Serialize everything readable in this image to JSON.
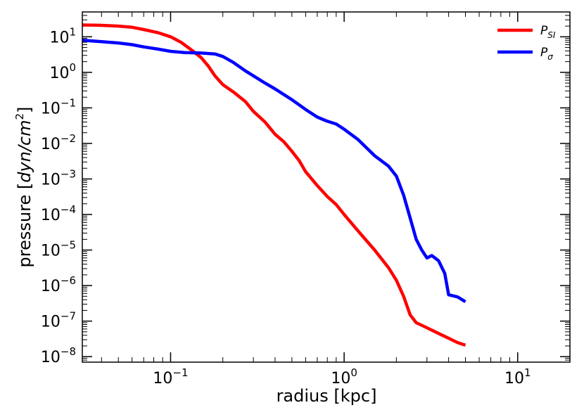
{
  "chart_data": {
    "type": "line",
    "xlabel": "radius [kpc]",
    "ylabel": {
      "prefix": "pressure [",
      "italic": "dyn/cm",
      "sup": "2",
      "suffix": "]"
    },
    "xscale": "log",
    "yscale": "log",
    "xlim": [
      0.031,
      20
    ],
    "ylim": [
      7e-09,
      50
    ],
    "x_ticks": [
      {
        "base": "10",
        "exp": "−1",
        "value": 0.1
      },
      {
        "base": "10",
        "exp": "0",
        "value": 1
      },
      {
        "base": "10",
        "exp": "1",
        "value": 10
      }
    ],
    "y_ticks": [
      {
        "base": "10",
        "exp": "1",
        "value": 10
      },
      {
        "base": "10",
        "exp": "0",
        "value": 1
      },
      {
        "base": "10",
        "exp": "−1",
        "value": 0.1
      },
      {
        "base": "10",
        "exp": "−2",
        "value": 0.01
      },
      {
        "base": "10",
        "exp": "−3",
        "value": 0.001
      },
      {
        "base": "10",
        "exp": "−4",
        "value": 0.0001
      },
      {
        "base": "10",
        "exp": "−5",
        "value": 1e-05
      },
      {
        "base": "10",
        "exp": "−6",
        "value": 1e-06
      },
      {
        "base": "10",
        "exp": "−7",
        "value": 1e-07
      },
      {
        "base": "10",
        "exp": "−8",
        "value": 1e-08
      }
    ],
    "grid": false,
    "legend_position": "top-right",
    "series": [
      {
        "name": "P_SI",
        "label_main": "P",
        "label_sub": "SI",
        "color": "#ff0000",
        "points": [
          [
            0.031,
            21.5
          ],
          [
            0.04,
            21.0
          ],
          [
            0.05,
            20.0
          ],
          [
            0.06,
            18.5
          ],
          [
            0.07,
            16.0
          ],
          [
            0.085,
            13.0
          ],
          [
            0.1,
            10.0
          ],
          [
            0.115,
            7.0
          ],
          [
            0.13,
            4.5
          ],
          [
            0.15,
            2.6
          ],
          [
            0.165,
            1.5
          ],
          [
            0.18,
            0.8
          ],
          [
            0.2,
            0.45
          ],
          [
            0.23,
            0.28
          ],
          [
            0.27,
            0.15
          ],
          [
            0.3,
            0.08
          ],
          [
            0.35,
            0.04
          ],
          [
            0.4,
            0.018
          ],
          [
            0.45,
            0.011
          ],
          [
            0.5,
            0.006
          ],
          [
            0.55,
            0.0033
          ],
          [
            0.6,
            0.0016
          ],
          [
            0.7,
            0.00065
          ],
          [
            0.8,
            0.00032
          ],
          [
            0.9,
            0.00019
          ],
          [
            1.0,
            0.0001
          ],
          [
            1.2,
            3.5e-05
          ],
          [
            1.5,
            1e-05
          ],
          [
            1.8,
            3.2e-06
          ],
          [
            2.0,
            1.4e-06
          ],
          [
            2.2,
            5e-07
          ],
          [
            2.4,
            1.5e-07
          ],
          [
            2.6,
            9e-08
          ],
          [
            3.0,
            6.5e-08
          ],
          [
            3.5,
            4.5e-08
          ],
          [
            4.0,
            3.3e-08
          ],
          [
            4.5,
            2.5e-08
          ],
          [
            5.0,
            2.1e-08
          ]
        ]
      },
      {
        "name": "P_sigma",
        "label_main": "P",
        "label_sub": "σ",
        "color": "#0000ff",
        "points": [
          [
            0.031,
            8.0
          ],
          [
            0.04,
            7.3
          ],
          [
            0.05,
            6.7
          ],
          [
            0.06,
            6.0
          ],
          [
            0.07,
            5.2
          ],
          [
            0.085,
            4.5
          ],
          [
            0.1,
            3.9
          ],
          [
            0.12,
            3.6
          ],
          [
            0.15,
            3.5
          ],
          [
            0.18,
            3.3
          ],
          [
            0.2,
            2.8
          ],
          [
            0.23,
            1.9
          ],
          [
            0.27,
            1.1
          ],
          [
            0.3,
            0.8
          ],
          [
            0.35,
            0.5
          ],
          [
            0.4,
            0.34
          ],
          [
            0.5,
            0.17
          ],
          [
            0.6,
            0.09
          ],
          [
            0.7,
            0.055
          ],
          [
            0.8,
            0.042
          ],
          [
            0.9,
            0.035
          ],
          [
            1.0,
            0.025
          ],
          [
            1.2,
            0.013
          ],
          [
            1.5,
            0.0045
          ],
          [
            1.8,
            0.0023
          ],
          [
            2.0,
            0.0012
          ],
          [
            2.2,
            0.00035
          ],
          [
            2.4,
            8e-05
          ],
          [
            2.6,
            2e-05
          ],
          [
            2.8,
            1e-05
          ],
          [
            3.0,
            6e-06
          ],
          [
            3.2,
            7e-06
          ],
          [
            3.5,
            5e-06
          ],
          [
            3.8,
            2.2e-06
          ],
          [
            4.0,
            5.5e-07
          ],
          [
            4.5,
            4.8e-07
          ],
          [
            5.0,
            3.5e-07
          ]
        ]
      }
    ]
  }
}
